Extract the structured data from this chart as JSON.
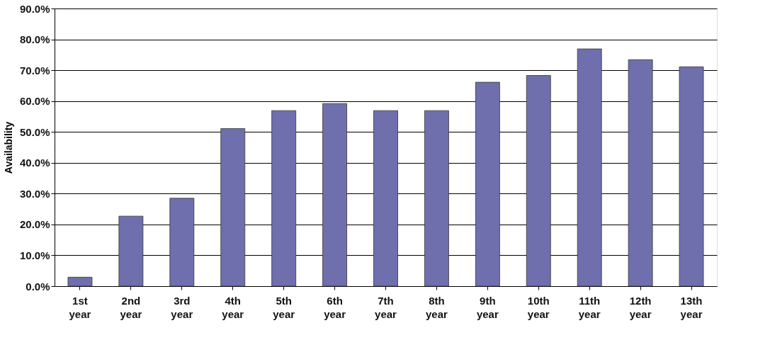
{
  "chart_data": {
    "type": "bar",
    "ylabel": "Availability",
    "categories": [
      "1st year",
      "2nd year",
      "3rd year",
      "4th year",
      "5th year",
      "6th year",
      "7th year",
      "8th year",
      "9th year",
      "10th year",
      "11th year",
      "12th year",
      "13th year"
    ],
    "values": [
      2.9,
      22.7,
      28.5,
      51.1,
      56.9,
      59.2,
      56.9,
      56.9,
      66.1,
      68.3,
      76.9,
      73.4,
      71.1
    ],
    "color": "#6f6fae",
    "ylim": [
      0,
      90
    ],
    "yticks": [
      {
        "value": 0,
        "label": "0.0%"
      },
      {
        "value": 10,
        "label": "10.0%"
      },
      {
        "value": 20,
        "label": "20.0%"
      },
      {
        "value": 30,
        "label": "30.0%"
      },
      {
        "value": 40,
        "label": "40.0%"
      },
      {
        "value": 50,
        "label": "50.0%"
      },
      {
        "value": 60,
        "label": "60.0%"
      },
      {
        "value": 70,
        "label": "70.0%"
      },
      {
        "value": 80,
        "label": "80.0%"
      },
      {
        "value": 90,
        "label": "90.0%"
      }
    ],
    "grid": "y"
  }
}
